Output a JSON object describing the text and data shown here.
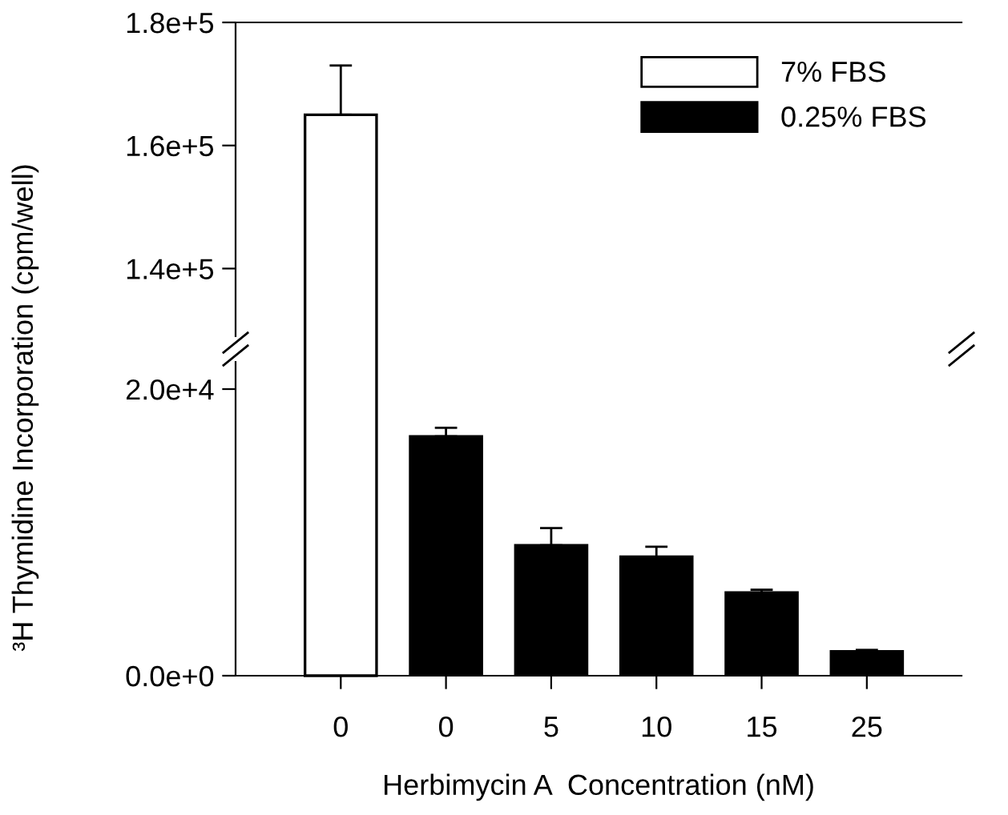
{
  "chart_data": [
    {
      "type": "bar",
      "categories": [
        "0",
        "0",
        "5",
        "10",
        "15",
        "25"
      ],
      "series": [
        {
          "name": "7% FBS",
          "color": "#ffffff",
          "values": [
            165000,
            null,
            null,
            null,
            null,
            null
          ],
          "errors": [
            8000,
            null,
            null,
            null,
            null,
            null
          ]
        },
        {
          "name": "0.25% FBS",
          "color": "#000000",
          "values": [
            null,
            null,
            null,
            null,
            null,
            null
          ]
        }
      ],
      "ylim": [
        129000,
        180000
      ],
      "yticks": [
        {
          "value": 140000,
          "label": "1.4e+5"
        },
        {
          "value": 160000,
          "label": "1.6e+5"
        },
        {
          "value": 180000,
          "label": "1.8e+5"
        }
      ],
      "ylabel": "³H Thymidine Incorporation (cpm/well)",
      "tick_labels": "y",
      "legend": "top right",
      "grid": false
    },
    {
      "type": "bar",
      "categories": [
        "0",
        "0",
        "5",
        "10",
        "15",
        "25"
      ],
      "series": [
        {
          "color": "#000000",
          "values": [
            null,
            16700,
            9100,
            8300,
            5800,
            1700
          ],
          "errors": [
            null,
            600,
            1200,
            700,
            200,
            100
          ]
        }
      ],
      "ylim": [
        0,
        21900
      ],
      "yticks": [
        {
          "value": 0,
          "label": "0.0e+0"
        },
        {
          "value": 20000,
          "label": "2.0e+4"
        }
      ],
      "xlabel": "Herbimycin A  Concentration (nM)",
      "grid": false
    }
  ]
}
